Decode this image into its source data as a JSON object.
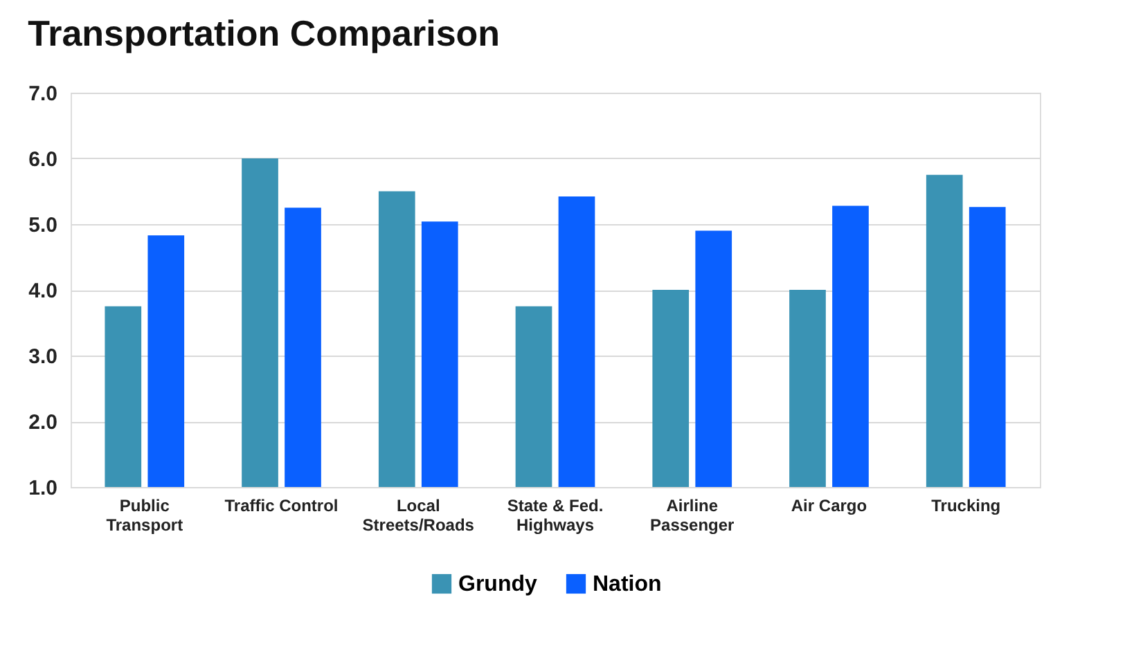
{
  "chart_data": {
    "type": "bar",
    "title": "Transportation Comparison",
    "categories": [
      "Public\nTransport",
      "Traffic Control",
      "Local\nStreets/Roads",
      "State & Fed.\nHighways",
      "Airline\nPassenger",
      "Air Cargo",
      "Trucking"
    ],
    "series": [
      {
        "name": "Grundy",
        "color": "#3a93b4",
        "values": [
          3.75,
          6.0,
          5.5,
          3.75,
          4.0,
          4.0,
          5.75
        ]
      },
      {
        "name": "Nation",
        "color": "#0a60ff",
        "values": [
          4.83,
          5.25,
          5.04,
          5.42,
          4.9,
          5.28,
          5.26
        ]
      }
    ],
    "ylim": [
      1.0,
      7.0
    ],
    "yticks": [
      {
        "value": 1,
        "label": "1.0"
      },
      {
        "value": 2,
        "label": "2.0"
      },
      {
        "value": 3,
        "label": "3.0"
      },
      {
        "value": 4,
        "label": "4.0"
      },
      {
        "value": 5,
        "label": "5.0"
      },
      {
        "value": 6,
        "label": "6.0"
      },
      {
        "value": 7,
        "label": "7.0"
      }
    ],
    "grid": "y",
    "legend": "bottom"
  }
}
